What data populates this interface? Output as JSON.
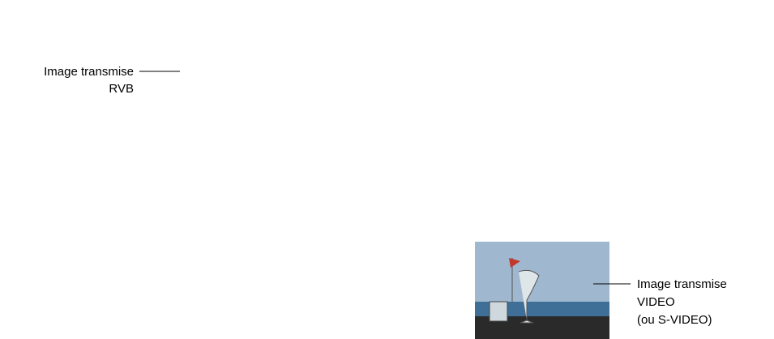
{
  "left_label": {
    "line1": "Image transmise",
    "line2": "RVB"
  },
  "right_label": {
    "line1": "Image transmise",
    "line2": "VIDEO",
    "line3": "(ou S-VIDEO)"
  }
}
